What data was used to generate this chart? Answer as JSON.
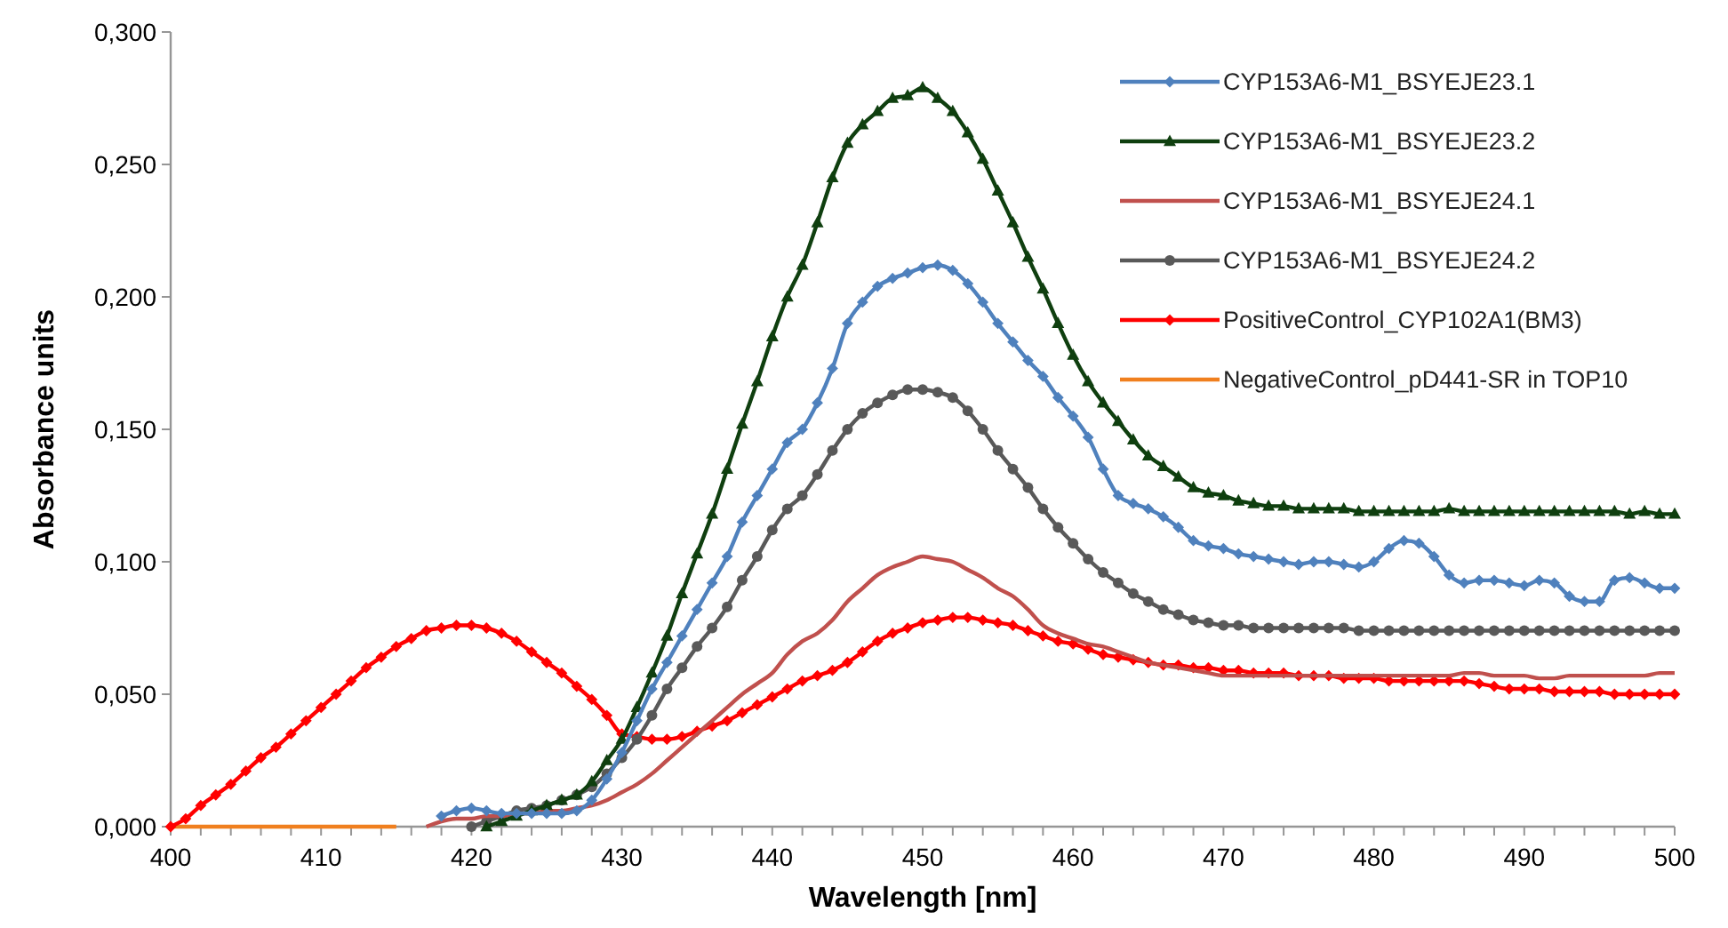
{
  "chart_data": {
    "type": "line",
    "xlabel": "Wavelength [nm]",
    "ylabel": "Absorbance units",
    "xlim": [
      400,
      500
    ],
    "ylim": [
      0,
      0.3
    ],
    "xticks": [
      400,
      {
        "value": 402,
        "label": null
      },
      {
        "value": 404,
        "label": null
      },
      {
        "value": 406,
        "label": null
      },
      {
        "value": 408,
        "label": null
      },
      410,
      {
        "value": 412,
        "label": null
      },
      {
        "value": 414,
        "label": null
      },
      {
        "value": 416,
        "label": null
      },
      {
        "value": 418,
        "label": null
      },
      420,
      {
        "value": 422,
        "label": null
      },
      {
        "value": 424,
        "label": null
      },
      {
        "value": 426,
        "label": null
      },
      {
        "value": 428,
        "label": null
      },
      430,
      {
        "value": 432,
        "label": null
      },
      {
        "value": 434,
        "label": null
      },
      {
        "value": 436,
        "label": null
      },
      {
        "value": 438,
        "label": null
      },
      440,
      {
        "value": 442,
        "label": null
      },
      {
        "value": 444,
        "label": null
      },
      {
        "value": 446,
        "label": null
      },
      {
        "value": 448,
        "label": null
      },
      450,
      {
        "value": 452,
        "label": null
      },
      {
        "value": 454,
        "label": null
      },
      {
        "value": 456,
        "label": null
      },
      {
        "value": 458,
        "label": null
      },
      460,
      {
        "value": 462,
        "label": null
      },
      {
        "value": 464,
        "label": null
      },
      {
        "value": 466,
        "label": null
      },
      {
        "value": 468,
        "label": null
      },
      470,
      {
        "value": 472,
        "label": null
      },
      {
        "value": 474,
        "label": null
      },
      {
        "value": 476,
        "label": null
      },
      {
        "value": 478,
        "label": null
      },
      480,
      {
        "value": 482,
        "label": null
      },
      {
        "value": 484,
        "label": null
      },
      {
        "value": 486,
        "label": null
      },
      {
        "value": 488,
        "label": null
      },
      490,
      {
        "value": 492,
        "label": null
      },
      {
        "value": 494,
        "label": null
      },
      {
        "value": 496,
        "label": null
      },
      {
        "value": 498,
        "label": null
      },
      500
    ],
    "yticks": [
      {
        "value": 0,
        "label": "0,000"
      },
      {
        "value": 0.05,
        "label": "0,050"
      },
      {
        "value": 0.1,
        "label": "0,100"
      },
      {
        "value": 0.15,
        "label": "0,150"
      },
      {
        "value": 0.2,
        "label": "0,200"
      },
      {
        "value": 0.25,
        "label": "0,250"
      },
      {
        "value": 0.3,
        "label": "0,300"
      }
    ],
    "grid": false,
    "legend": "top right",
    "line_style": "solid",
    "series": [
      {
        "name": "CYP153A6-M1_BSYEJE23.1",
        "color": "#4f81bd",
        "marker": "diamond",
        "x": [
          418,
          419,
          420,
          421,
          422,
          423,
          424,
          425,
          426,
          427,
          428,
          429,
          430,
          431,
          432,
          433,
          434,
          435,
          436,
          437,
          438,
          439,
          440,
          441,
          442,
          443,
          444,
          445,
          446,
          447,
          448,
          449,
          450,
          451,
          452,
          453,
          454,
          455,
          456,
          457,
          458,
          459,
          460,
          461,
          462,
          463,
          464,
          465,
          466,
          467,
          468,
          469,
          470,
          471,
          472,
          473,
          474,
          475,
          476,
          477,
          478,
          479,
          480,
          481,
          482,
          483,
          484,
          485,
          486,
          487,
          488,
          489,
          490,
          491,
          492,
          493,
          494,
          495,
          496,
          497,
          498,
          499,
          500
        ],
        "values": [
          0.004,
          0.006,
          0.007,
          0.006,
          0.005,
          0.005,
          0.005,
          0.005,
          0.005,
          0.006,
          0.01,
          0.018,
          0.028,
          0.04,
          0.052,
          0.062,
          0.072,
          0.082,
          0.092,
          0.102,
          0.115,
          0.125,
          0.135,
          0.145,
          0.15,
          0.16,
          0.173,
          0.19,
          0.198,
          0.204,
          0.207,
          0.209,
          0.211,
          0.212,
          0.21,
          0.205,
          0.198,
          0.19,
          0.183,
          0.176,
          0.17,
          0.162,
          0.155,
          0.147,
          0.135,
          0.125,
          0.122,
          0.12,
          0.117,
          0.113,
          0.108,
          0.106,
          0.105,
          0.103,
          0.102,
          0.101,
          0.1,
          0.099,
          0.1,
          0.1,
          0.099,
          0.098,
          0.1,
          0.105,
          0.108,
          0.107,
          0.102,
          0.095,
          0.092,
          0.093,
          0.093,
          0.092,
          0.091,
          0.093,
          0.092,
          0.087,
          0.085,
          0.085,
          0.093,
          0.094,
          0.092,
          0.09,
          0.09
        ]
      },
      {
        "name": "CYP153A6-M1_BSYEJE23.2",
        "color": "#0f3f0f",
        "marker": "triangle",
        "x": [
          421,
          422,
          423,
          424,
          425,
          426,
          427,
          428,
          429,
          430,
          431,
          432,
          433,
          434,
          435,
          436,
          437,
          438,
          439,
          440,
          441,
          442,
          443,
          444,
          445,
          446,
          447,
          448,
          449,
          450,
          451,
          452,
          453,
          454,
          455,
          456,
          457,
          458,
          459,
          460,
          461,
          462,
          463,
          464,
          465,
          466,
          467,
          468,
          469,
          470,
          471,
          472,
          473,
          474,
          475,
          476,
          477,
          478,
          479,
          480,
          481,
          482,
          483,
          484,
          485,
          486,
          487,
          488,
          489,
          490,
          491,
          492,
          493,
          494,
          495,
          496,
          497,
          498,
          499,
          500
        ],
        "values": [
          0,
          0.002,
          0.004,
          0.006,
          0.008,
          0.01,
          0.012,
          0.017,
          0.025,
          0.033,
          0.045,
          0.058,
          0.072,
          0.088,
          0.103,
          0.118,
          0.135,
          0.152,
          0.168,
          0.185,
          0.2,
          0.212,
          0.228,
          0.245,
          0.258,
          0.265,
          0.27,
          0.275,
          0.276,
          0.279,
          0.275,
          0.27,
          0.262,
          0.252,
          0.24,
          0.228,
          0.215,
          0.203,
          0.19,
          0.178,
          0.168,
          0.16,
          0.153,
          0.146,
          0.14,
          0.136,
          0.132,
          0.128,
          0.126,
          0.125,
          0.123,
          0.122,
          0.121,
          0.121,
          0.12,
          0.12,
          0.12,
          0.12,
          0.119,
          0.119,
          0.119,
          0.119,
          0.119,
          0.119,
          0.12,
          0.119,
          0.119,
          0.119,
          0.119,
          0.119,
          0.119,
          0.119,
          0.119,
          0.119,
          0.119,
          0.119,
          0.118,
          0.119,
          0.118,
          0.118
        ]
      },
      {
        "name": "CYP153A6-M1_BSYEJE24.1",
        "color": "#c0504d",
        "marker": "none",
        "x": [
          417,
          418,
          419,
          420,
          421,
          422,
          423,
          424,
          425,
          426,
          427,
          428,
          429,
          430,
          431,
          432,
          433,
          434,
          435,
          436,
          437,
          438,
          439,
          440,
          441,
          442,
          443,
          444,
          445,
          446,
          447,
          448,
          449,
          450,
          451,
          452,
          453,
          454,
          455,
          456,
          457,
          458,
          459,
          460,
          461,
          462,
          463,
          464,
          465,
          466,
          467,
          468,
          469,
          470,
          471,
          472,
          473,
          474,
          475,
          476,
          477,
          478,
          479,
          480,
          481,
          482,
          483,
          484,
          485,
          486,
          487,
          488,
          489,
          490,
          491,
          492,
          493,
          494,
          495,
          496,
          497,
          498,
          499,
          500
        ],
        "values": [
          0,
          0.002,
          0.003,
          0.003,
          0.004,
          0.004,
          0.005,
          0.005,
          0.006,
          0.006,
          0.007,
          0.008,
          0.01,
          0.013,
          0.016,
          0.02,
          0.025,
          0.03,
          0.035,
          0.04,
          0.045,
          0.05,
          0.054,
          0.058,
          0.065,
          0.07,
          0.073,
          0.078,
          0.085,
          0.09,
          0.095,
          0.098,
          0.1,
          0.102,
          0.101,
          0.1,
          0.097,
          0.094,
          0.09,
          0.087,
          0.082,
          0.076,
          0.073,
          0.071,
          0.069,
          0.068,
          0.066,
          0.064,
          0.062,
          0.061,
          0.06,
          0.059,
          0.058,
          0.057,
          0.057,
          0.057,
          0.057,
          0.057,
          0.057,
          0.057,
          0.057,
          0.057,
          0.057,
          0.057,
          0.057,
          0.057,
          0.057,
          0.057,
          0.057,
          0.058,
          0.058,
          0.057,
          0.057,
          0.057,
          0.056,
          0.056,
          0.057,
          0.057,
          0.057,
          0.057,
          0.057,
          0.057,
          0.058,
          0.058
        ]
      },
      {
        "name": "CYP153A6-M1_BSYEJE24.2",
        "color": "#595959",
        "marker": "circle",
        "x": [
          420,
          421,
          422,
          423,
          424,
          425,
          426,
          427,
          428,
          429,
          430,
          431,
          432,
          433,
          434,
          435,
          436,
          437,
          438,
          439,
          440,
          441,
          442,
          443,
          444,
          445,
          446,
          447,
          448,
          449,
          450,
          451,
          452,
          453,
          454,
          455,
          456,
          457,
          458,
          459,
          460,
          461,
          462,
          463,
          464,
          465,
          466,
          467,
          468,
          469,
          470,
          471,
          472,
          473,
          474,
          475,
          476,
          477,
          478,
          479,
          480,
          481,
          482,
          483,
          484,
          485,
          486,
          487,
          488,
          489,
          490,
          491,
          492,
          493,
          494,
          495,
          496,
          497,
          498,
          499,
          500
        ],
        "values": [
          0,
          0.002,
          0.004,
          0.006,
          0.007,
          0.008,
          0.01,
          0.012,
          0.015,
          0.02,
          0.026,
          0.033,
          0.042,
          0.052,
          0.06,
          0.068,
          0.075,
          0.083,
          0.093,
          0.102,
          0.112,
          0.12,
          0.125,
          0.133,
          0.142,
          0.15,
          0.156,
          0.16,
          0.163,
          0.165,
          0.165,
          0.164,
          0.162,
          0.157,
          0.15,
          0.142,
          0.135,
          0.128,
          0.12,
          0.113,
          0.107,
          0.101,
          0.096,
          0.092,
          0.088,
          0.085,
          0.082,
          0.08,
          0.078,
          0.077,
          0.076,
          0.076,
          0.075,
          0.075,
          0.075,
          0.075,
          0.075,
          0.075,
          0.075,
          0.074,
          0.074,
          0.074,
          0.074,
          0.074,
          0.074,
          0.074,
          0.074,
          0.074,
          0.074,
          0.074,
          0.074,
          0.074,
          0.074,
          0.074,
          0.074,
          0.074,
          0.074,
          0.074,
          0.074,
          0.074,
          0.074
        ]
      },
      {
        "name": "PositiveControl_CYP102A1(BM3)",
        "color": "#ff0000",
        "marker": "diamond",
        "x": [
          400,
          401,
          402,
          403,
          404,
          405,
          406,
          407,
          408,
          409,
          410,
          411,
          412,
          413,
          414,
          415,
          416,
          417,
          418,
          419,
          420,
          421,
          422,
          423,
          424,
          425,
          426,
          427,
          428,
          429,
          430,
          431,
          432,
          433,
          434,
          435,
          436,
          437,
          438,
          439,
          440,
          441,
          442,
          443,
          444,
          445,
          446,
          447,
          448,
          449,
          450,
          451,
          452,
          453,
          454,
          455,
          456,
          457,
          458,
          459,
          460,
          461,
          462,
          463,
          464,
          465,
          466,
          467,
          468,
          469,
          470,
          471,
          472,
          473,
          474,
          475,
          476,
          477,
          478,
          479,
          480,
          481,
          482,
          483,
          484,
          485,
          486,
          487,
          488,
          489,
          490,
          491,
          492,
          493,
          494,
          495,
          496,
          497,
          498,
          499,
          500
        ],
        "values": [
          0,
          0.003,
          0.008,
          0.012,
          0.016,
          0.021,
          0.026,
          0.03,
          0.035,
          0.04,
          0.045,
          0.05,
          0.055,
          0.06,
          0.064,
          0.068,
          0.071,
          0.074,
          0.075,
          0.076,
          0.076,
          0.075,
          0.073,
          0.07,
          0.066,
          0.062,
          0.058,
          0.053,
          0.048,
          0.042,
          0.035,
          0.034,
          0.033,
          0.033,
          0.034,
          0.036,
          0.038,
          0.04,
          0.043,
          0.046,
          0.049,
          0.052,
          0.055,
          0.057,
          0.059,
          0.062,
          0.066,
          0.07,
          0.073,
          0.075,
          0.077,
          0.078,
          0.079,
          0.079,
          0.078,
          0.077,
          0.076,
          0.074,
          0.072,
          0.07,
          0.069,
          0.067,
          0.065,
          0.064,
          0.063,
          0.062,
          0.061,
          0.061,
          0.06,
          0.06,
          0.059,
          0.059,
          0.058,
          0.058,
          0.058,
          0.057,
          0.057,
          0.057,
          0.056,
          0.056,
          0.056,
          0.055,
          0.055,
          0.055,
          0.055,
          0.055,
          0.055,
          0.054,
          0.053,
          0.052,
          0.052,
          0.052,
          0.051,
          0.051,
          0.051,
          0.051,
          0.05,
          0.05,
          0.05,
          0.05,
          0.05
        ]
      },
      {
        "name": "NegativeControl_pD441-SR in TOP10",
        "color": "#f07f1e",
        "marker": "none",
        "x": [
          400,
          401,
          402,
          403,
          404,
          405,
          406,
          407,
          408,
          409,
          410,
          411,
          412,
          413,
          414,
          415
        ],
        "values": [
          0,
          0,
          0,
          0,
          0,
          0,
          0,
          0,
          0,
          0,
          0,
          0,
          0,
          0,
          0,
          0
        ]
      }
    ]
  }
}
